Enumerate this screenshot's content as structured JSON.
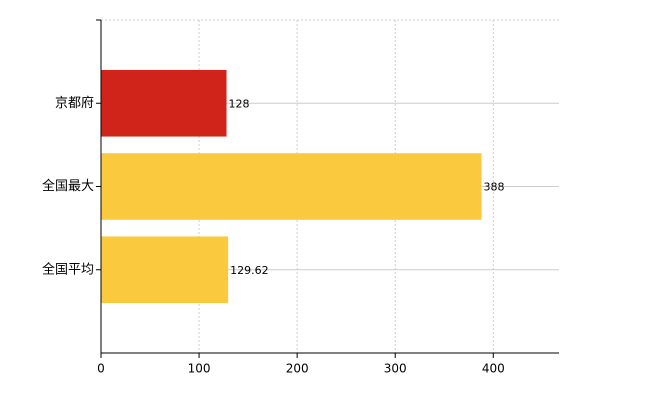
{
  "chart_data": {
    "type": "bar",
    "orientation": "horizontal",
    "categories": [
      "京都府",
      "全国最大",
      "全国平均"
    ],
    "values": [
      128,
      388,
      129.62
    ],
    "colors": [
      "#d0241b",
      "#fbc93d",
      "#fbc93d"
    ],
    "xlim": [
      0,
      467
    ],
    "xticks": [
      0,
      100,
      200,
      300,
      400
    ],
    "grid": true
  }
}
